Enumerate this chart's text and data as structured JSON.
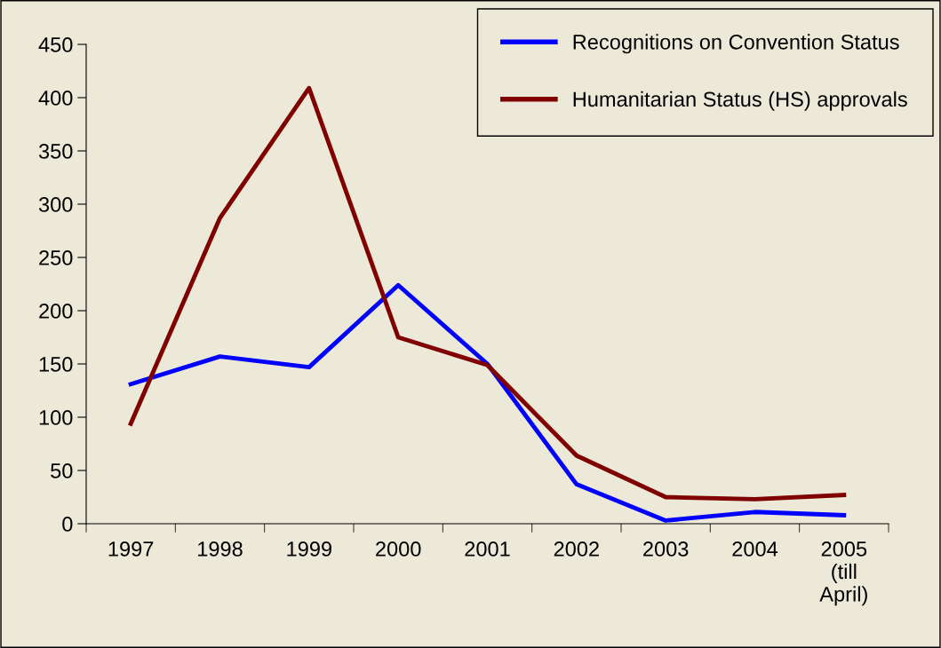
{
  "chart_data": {
    "type": "line",
    "categories": [
      "1997",
      "1998",
      "1999",
      "2000",
      "2001",
      "2002",
      "2003",
      "2004",
      "2005\n(till\nApril)"
    ],
    "series": [
      {
        "name": "Recognitions on Convention Status",
        "color": "#0000ff",
        "values": [
          131,
          157,
          147,
          224,
          150,
          37,
          3,
          11,
          8
        ]
      },
      {
        "name": "Humanitarian Status (HS) approvals",
        "color": "#800000",
        "values": [
          94,
          287,
          409,
          175,
          149,
          64,
          25,
          23,
          27
        ]
      }
    ],
    "ylim": [
      0,
      450
    ],
    "yticks": [
      0,
      50,
      100,
      150,
      200,
      250,
      300,
      350,
      400,
      450
    ],
    "grid": false,
    "legend": "top right",
    "marker": "none",
    "line_style": "solid"
  }
}
